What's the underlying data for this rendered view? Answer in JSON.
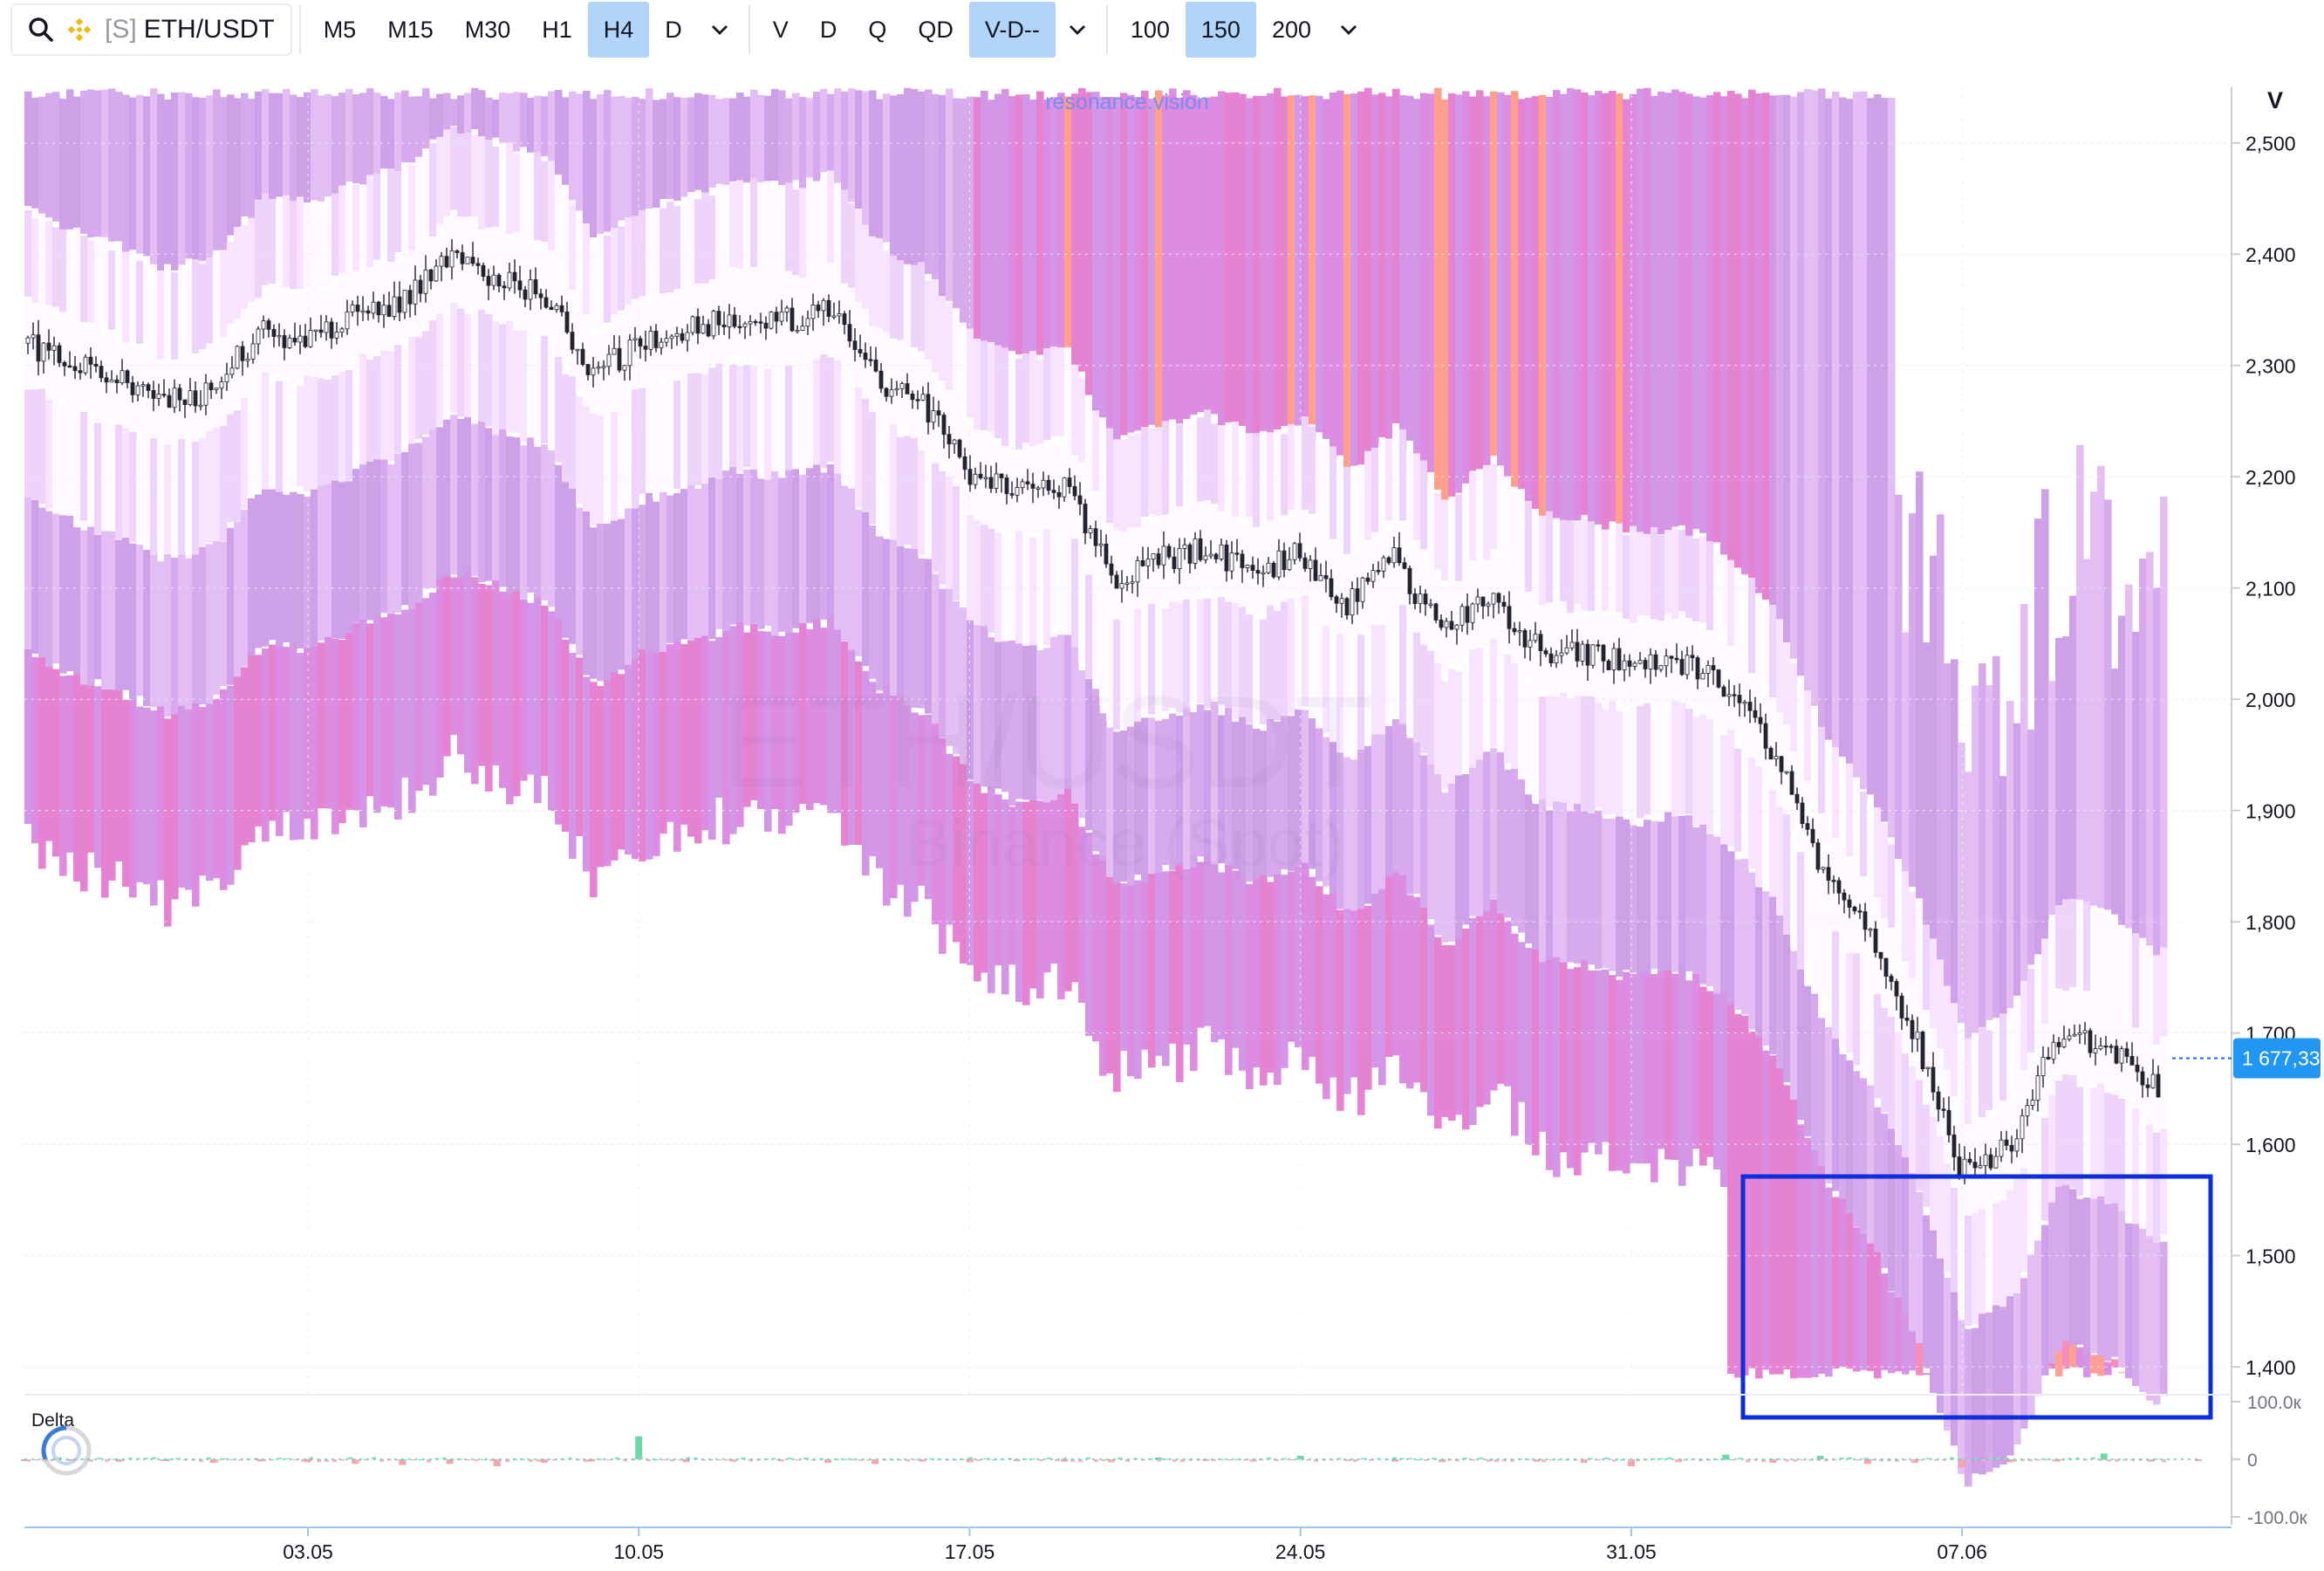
{
  "toolbar": {
    "symbol_prefix": "[S]",
    "symbol": "ETH/USDT",
    "timeframes": [
      "M5",
      "M15",
      "M30",
      "H1",
      "H4",
      "D"
    ],
    "active_timeframe": "H4",
    "modes": [
      "V",
      "D",
      "Q",
      "QD",
      "V-D--"
    ],
    "active_mode": "V-D--",
    "depths": [
      "100",
      "150",
      "200"
    ],
    "active_depth": "150"
  },
  "chart": {
    "watermark_site": "resonance.vision",
    "watermark_symbol": "ETH/USDT",
    "watermark_exchange": "Binance (Spot)",
    "price_axis_header": "V",
    "last_price_label": "1 677,33",
    "delta_label": "Delta",
    "delta_axis_labels": [
      "100.0к",
      "0",
      "-100.0к"
    ]
  },
  "chart_data": {
    "type": "line",
    "series_kind": "candlestick over volume-profile heatmap",
    "y_ticks": [
      1400,
      1500,
      1600,
      1700,
      1800,
      1900,
      2000,
      2100,
      2200,
      2300,
      2400,
      2500
    ],
    "y_tick_labels": [
      "1,400",
      "1,500",
      "1,600",
      "1,700",
      "1,800",
      "1,900",
      "2,000",
      "2,100",
      "2,200",
      "2,300",
      "2,400",
      "2,500"
    ],
    "ylim": [
      1375,
      2550
    ],
    "x_tick_labels": [
      "03.05",
      "10.05",
      "17.05",
      "24.05",
      "31.05",
      "07.06"
    ],
    "x_day_range": [
      -6,
      40
    ],
    "x_tick_days": [
      0,
      7,
      14,
      21,
      28,
      35
    ],
    "last_price": 1677.33,
    "price": [
      [
        -6,
        2320
      ],
      [
        -5,
        2300
      ],
      [
        -4,
        2285
      ],
      [
        -3,
        2265
      ],
      [
        -2,
        2280
      ],
      [
        -1,
        2330
      ],
      [
        0,
        2325
      ],
      [
        1,
        2345
      ],
      [
        2,
        2360
      ],
      [
        3,
        2395
      ],
      [
        4,
        2380
      ],
      [
        5,
        2365
      ],
      [
        6,
        2290
      ],
      [
        7,
        2320
      ],
      [
        8,
        2330
      ],
      [
        9,
        2345
      ],
      [
        10,
        2340
      ],
      [
        11,
        2350
      ],
      [
        12,
        2290
      ],
      [
        13,
        2265
      ],
      [
        14,
        2205
      ],
      [
        15,
        2185
      ],
      [
        16,
        2195
      ],
      [
        17,
        2110
      ],
      [
        18,
        2125
      ],
      [
        19,
        2135
      ],
      [
        20,
        2115
      ],
      [
        21,
        2130
      ],
      [
        22,
        2085
      ],
      [
        23,
        2125
      ],
      [
        24,
        2060
      ],
      [
        25,
        2095
      ],
      [
        26,
        2045
      ],
      [
        27,
        2040
      ],
      [
        28,
        2030
      ],
      [
        29,
        2035
      ],
      [
        30,
        2010
      ],
      [
        31,
        1955
      ],
      [
        32,
        1850
      ],
      [
        33,
        1790
      ],
      [
        34,
        1700
      ],
      [
        35,
        1575
      ],
      [
        36,
        1600
      ],
      [
        37,
        1700
      ],
      [
        38,
        1690
      ],
      [
        39,
        1650
      ],
      [
        40,
        1677
      ]
    ],
    "delta": [
      [
        -6,
        -2
      ],
      [
        -5,
        -3
      ],
      [
        -4,
        -4
      ],
      [
        -3,
        -2
      ],
      [
        -2,
        -6
      ],
      [
        -1,
        -4
      ],
      [
        0,
        -5
      ],
      [
        1,
        -8
      ],
      [
        2,
        -10
      ],
      [
        3,
        -8
      ],
      [
        4,
        -12
      ],
      [
        5,
        -6
      ],
      [
        6,
        -4
      ],
      [
        7,
        40
      ],
      [
        8,
        -5
      ],
      [
        9,
        -4
      ],
      [
        10,
        -3
      ],
      [
        11,
        -6
      ],
      [
        12,
        -8
      ],
      [
        13,
        -4
      ],
      [
        14,
        -5
      ],
      [
        15,
        -3
      ],
      [
        16,
        -4
      ],
      [
        17,
        -5
      ],
      [
        18,
        3
      ],
      [
        19,
        -3
      ],
      [
        20,
        -4
      ],
      [
        21,
        6
      ],
      [
        22,
        -3
      ],
      [
        23,
        -4
      ],
      [
        24,
        -5
      ],
      [
        25,
        -3
      ],
      [
        26,
        -4
      ],
      [
        27,
        -6
      ],
      [
        28,
        -12
      ],
      [
        29,
        -5
      ],
      [
        30,
        8
      ],
      [
        31,
        -6
      ],
      [
        32,
        6
      ],
      [
        33,
        -8
      ],
      [
        34,
        -6
      ],
      [
        35,
        -14
      ],
      [
        36,
        -5
      ],
      [
        37,
        -4
      ],
      [
        38,
        10
      ],
      [
        39,
        -4
      ],
      [
        40,
        -3
      ]
    ],
    "delta_ylim": [
      -100,
      100
    ],
    "grid": true,
    "legend": "none"
  }
}
